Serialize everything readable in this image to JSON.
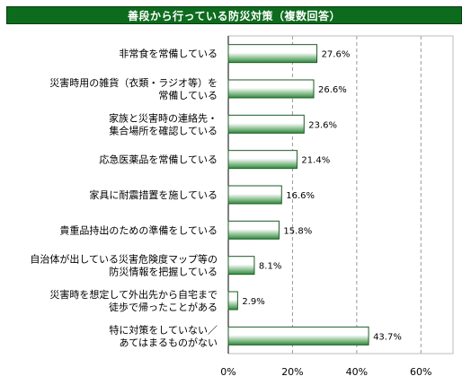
{
  "title": "善段から行っている防災対策（複数回答）",
  "chart_data": {
    "type": "bar",
    "orientation": "horizontal",
    "categories": [
      [
        "非常食を常備している"
      ],
      [
        "災害時用の雑貨（衣類・ラジオ等）を",
        "常備している"
      ],
      [
        "家族と災害時の連絡先・",
        "集合場所を確認している"
      ],
      [
        "応急医薬品を常備している"
      ],
      [
        "家具に耐震措置を施している"
      ],
      [
        "貴重品持出のための準備をしている"
      ],
      [
        "自治体が出している災害危険度マップ等の",
        "防災情報を把握している"
      ],
      [
        "災害時を想定して外出先から自宅まで",
        "徒歩で帰ったことがある"
      ],
      [
        "特に対策をしていない／",
        "あてはまるものがない"
      ]
    ],
    "values": [
      27.6,
      26.6,
      23.6,
      21.4,
      16.6,
      15.8,
      8.1,
      2.9,
      43.7
    ],
    "value_labels": [
      "27.6%",
      "26.6%",
      "23.6%",
      "21.4%",
      "16.6%",
      "15.8%",
      "8.1%",
      "2.9%",
      "43.7%"
    ],
    "xlim": [
      0,
      70
    ],
    "ticks": [
      0,
      20,
      40,
      60
    ],
    "tick_labels": [
      "0%",
      "20%",
      "40%",
      "60%"
    ],
    "grid": true,
    "bar_color": "#2e8b3a"
  }
}
